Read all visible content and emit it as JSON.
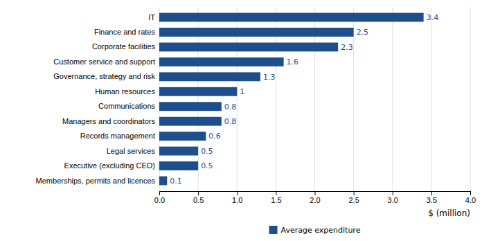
{
  "chart_data": {
    "type": "bar",
    "orientation": "horizontal",
    "categories": [
      "Memberships, permits and licences",
      "Executive (excluding CEO)",
      "Legal services",
      "Records management",
      "Managers and coordinators",
      "Communications",
      "Human resources",
      "Governance, strategy and risk",
      "Customer service and support",
      "Corporate facilities",
      "Finance and rates",
      "IT"
    ],
    "series": [
      {
        "name": "Average expenditure",
        "color": "#1F4E8C",
        "values": [
          0.1,
          0.5,
          0.5,
          0.6,
          0.8,
          0.8,
          1.0,
          1.3,
          1.6,
          2.3,
          2.5,
          3.4
        ]
      }
    ],
    "xlabel": "$ (million)",
    "xlim": [
      0,
      4.0
    ],
    "xticks": [
      {
        "value": 0.0,
        "label": "0.0"
      },
      0.5,
      {
        "value": 1.0,
        "label": "1.0"
      },
      1.5,
      {
        "value": 2.0,
        "label": "2.0"
      },
      2.5,
      {
        "value": 3.0,
        "label": "3.0"
      },
      3.5,
      {
        "value": 4.0,
        "label": "4.0"
      }
    ],
    "grid": true,
    "data_labels": true,
    "legend": "bottom"
  }
}
